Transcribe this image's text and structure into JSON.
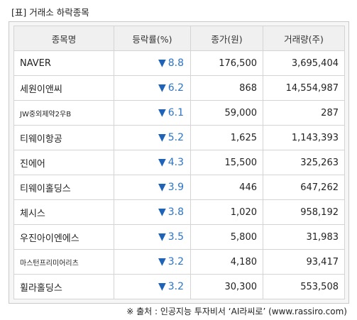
{
  "title": "[표] 거래소 하락종목",
  "table": {
    "headers": [
      "종목명",
      "등락률(%)",
      "종가(원)",
      "거래량(주)"
    ],
    "rows": [
      {
        "name": "NAVER",
        "arrow": "▼",
        "rate": "8.8",
        "close": "176,500",
        "volume": "3,695,404"
      },
      {
        "name": "세원이앤씨",
        "arrow": "▼",
        "rate": "6.2",
        "close": "868",
        "volume": "14,554,987"
      },
      {
        "name": "JW중외제약2우B",
        "arrow": "▼",
        "rate": "6.1",
        "close": "59,000",
        "volume": "287"
      },
      {
        "name": "티웨이항공",
        "arrow": "▼",
        "rate": "5.2",
        "close": "1,625",
        "volume": "1,143,393"
      },
      {
        "name": "진에어",
        "arrow": "▼",
        "rate": "4.3",
        "close": "15,500",
        "volume": "325,263"
      },
      {
        "name": "티웨이홀딩스",
        "arrow": "▼",
        "rate": "3.9",
        "close": "446",
        "volume": "647,262"
      },
      {
        "name": "체시스",
        "arrow": "▼",
        "rate": "3.8",
        "close": "1,020",
        "volume": "958,192"
      },
      {
        "name": "우진아이엔에스",
        "arrow": "▼",
        "rate": "3.5",
        "close": "5,800",
        "volume": "31,983"
      },
      {
        "name": "마스턴프리미어리츠",
        "arrow": "▼",
        "rate": "3.2",
        "close": "4,180",
        "volume": "93,417"
      },
      {
        "name": "휠라홀딩스",
        "arrow": "▼",
        "rate": "3.2",
        "close": "30,300",
        "volume": "553,508"
      }
    ]
  },
  "source": "※ 출처 : 인공지능 투자비서 ‘AI라씨로’ (www.rassiro.com)",
  "colors": {
    "down": "#1e63b8",
    "header_bg": "#f0f0f0",
    "border": "#d4d4d4"
  }
}
